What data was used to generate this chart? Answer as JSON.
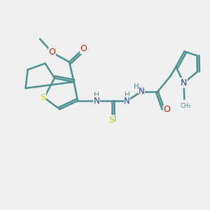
{
  "bg_color": "#f0f0f0",
  "bond_color": "#4a9090",
  "bond_width": 1.8,
  "S_color": "#cccc00",
  "N_color": "#2244bb",
  "O_color": "#cc2200",
  "H_color": "#4a9090",
  "figsize": [
    3.0,
    3.0
  ],
  "dpi": 100,
  "xlim": [
    0,
    10
  ],
  "ylim": [
    0,
    10
  ],
  "doff": 0.1
}
